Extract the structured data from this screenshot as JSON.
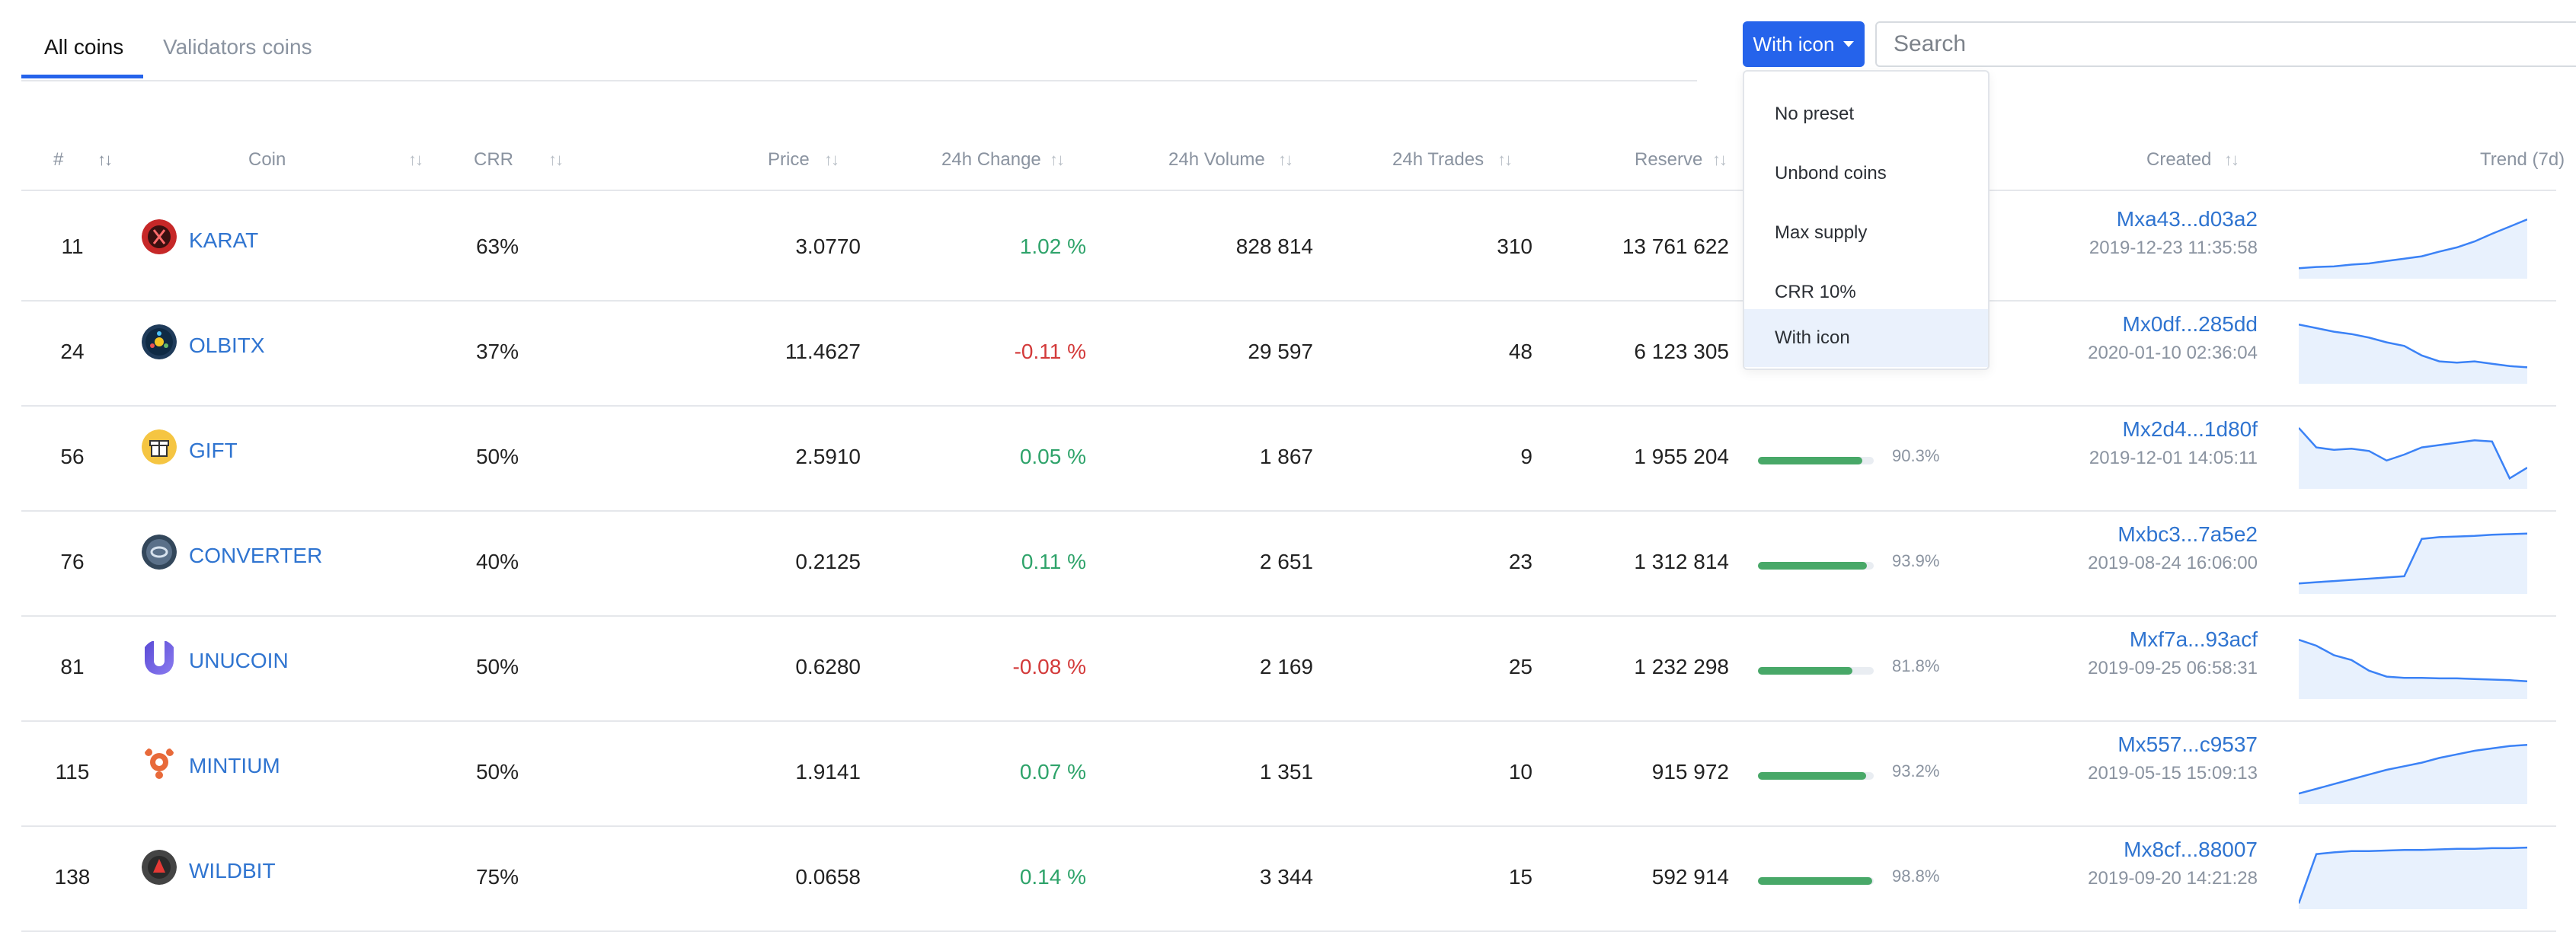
{
  "tabs": [
    {
      "label": "All coins",
      "active": true
    },
    {
      "label": "Validators coins",
      "active": false
    }
  ],
  "preset_button": {
    "label": "With icon",
    "color": "#2563eb"
  },
  "search": {
    "placeholder": "Search",
    "value": ""
  },
  "dropdown": {
    "items": [
      "No preset",
      "Unbond coins",
      "Max supply",
      "CRR 10%",
      "With icon"
    ],
    "selected": "With icon"
  },
  "table": {
    "headers": [
      "#",
      "Coin",
      "CRR",
      "Price",
      "24h Change",
      "24h Volume",
      "24h Trades",
      "Reserve",
      "Created",
      "Trend (7d)"
    ],
    "rows": [
      {
        "rank": "11",
        "coin": "KARAT",
        "icon": "karat-coin-icon",
        "crr": "63%",
        "price": "3.0770",
        "change": "1.02 %",
        "change_dir": "pos",
        "volume": "828 814",
        "trades": "310",
        "reserve": "13 761 622",
        "fill": null,
        "fill_label": "",
        "address": "Mxa43...d03a2",
        "date": "2019-12-23 11:35:58",
        "trend": [
          0.1,
          0.12,
          0.13,
          0.16,
          0.18,
          0.22,
          0.26,
          0.3,
          0.38,
          0.45,
          0.55,
          0.68,
          0.8,
          0.92
        ]
      },
      {
        "rank": "24",
        "coin": "OLBITX",
        "icon": "olbitx-coin-icon",
        "crr": "37%",
        "price": "11.4627",
        "change": "-0.11 %",
        "change_dir": "neg",
        "volume": "29 597",
        "trades": "48",
        "reserve": "6 123 305",
        "fill": null,
        "fill_label": "",
        "address": "Mx0df...285dd",
        "date": "2020-01-10 02:36:04",
        "trend": [
          0.92,
          0.86,
          0.8,
          0.76,
          0.7,
          0.62,
          0.56,
          0.4,
          0.3,
          0.28,
          0.3,
          0.26,
          0.22,
          0.2
        ]
      },
      {
        "rank": "56",
        "coin": "GIFT",
        "icon": "gift-coin-icon",
        "crr": "50%",
        "price": "2.5910",
        "change": "0.05 %",
        "change_dir": "pos",
        "volume": "1 867",
        "trades": "9",
        "reserve": "1 955 204",
        "fill": 0.903,
        "fill_label": "90.3%",
        "address": "Mx2d4...1d80f",
        "date": "2019-12-01 14:05:11",
        "trend": [
          0.95,
          0.62,
          0.58,
          0.6,
          0.56,
          0.4,
          0.5,
          0.62,
          0.66,
          0.7,
          0.74,
          0.72,
          0.1,
          0.28
        ]
      },
      {
        "rank": "76",
        "coin": "CONVERTER",
        "icon": "converter-coin-icon",
        "crr": "40%",
        "price": "0.2125",
        "change": "0.11 %",
        "change_dir": "pos",
        "volume": "2 651",
        "trades": "23",
        "reserve": "1 312 814",
        "fill": 0.939,
        "fill_label": "93.9%",
        "address": "Mxbc3...7a5e2",
        "date": "2019-08-24 16:06:00",
        "trend": [
          0.1,
          0.12,
          0.14,
          0.16,
          0.18,
          0.2,
          0.22,
          0.85,
          0.88,
          0.89,
          0.9,
          0.92,
          0.93,
          0.94
        ]
      },
      {
        "rank": "81",
        "coin": "UNUCOIN",
        "icon": "unucoin-coin-icon",
        "crr": "50%",
        "price": "0.6280",
        "change": "-0.08 %",
        "change_dir": "neg",
        "volume": "2 169",
        "trades": "25",
        "reserve": "1 232 298",
        "fill": 0.818,
        "fill_label": "81.8%",
        "address": "Mxf7a...93acf",
        "date": "2019-09-25 06:58:31",
        "trend": [
          0.92,
          0.82,
          0.66,
          0.58,
          0.4,
          0.3,
          0.28,
          0.28,
          0.27,
          0.27,
          0.26,
          0.25,
          0.24,
          0.22
        ]
      },
      {
        "rank": "115",
        "coin": "MINTIUM",
        "icon": "mintium-coin-icon",
        "crr": "50%",
        "price": "1.9141",
        "change": "0.07 %",
        "change_dir": "pos",
        "volume": "1 351",
        "trades": "10",
        "reserve": "915 972",
        "fill": 0.932,
        "fill_label": "93.2%",
        "address": "Mx557...c9537",
        "date": "2019-05-15 15:09:13",
        "trend": [
          0.1,
          0.18,
          0.26,
          0.34,
          0.42,
          0.5,
          0.56,
          0.62,
          0.7,
          0.76,
          0.82,
          0.86,
          0.9,
          0.92
        ]
      },
      {
        "rank": "138",
        "coin": "WILDBIT",
        "icon": "wildbit-coin-icon",
        "crr": "75%",
        "price": "0.0658",
        "change": "0.14 %",
        "change_dir": "pos",
        "volume": "3 344",
        "trades": "15",
        "reserve": "592 914",
        "fill": 0.988,
        "fill_label": "98.8%",
        "address": "Mx8cf...88007",
        "date": "2019-09-20 14:21:28",
        "trend": [
          0.02,
          0.85,
          0.88,
          0.9,
          0.9,
          0.91,
          0.92,
          0.92,
          0.93,
          0.94,
          0.94,
          0.95,
          0.95,
          0.96
        ]
      }
    ]
  },
  "colors": {
    "accent": "#2563eb",
    "link": "#2f74d0",
    "positive": "#2ea36a",
    "negative": "#d33a3a",
    "bar": "#48a868",
    "trend_line": "#3b82f6",
    "trend_fill": "#e8f1fd"
  }
}
